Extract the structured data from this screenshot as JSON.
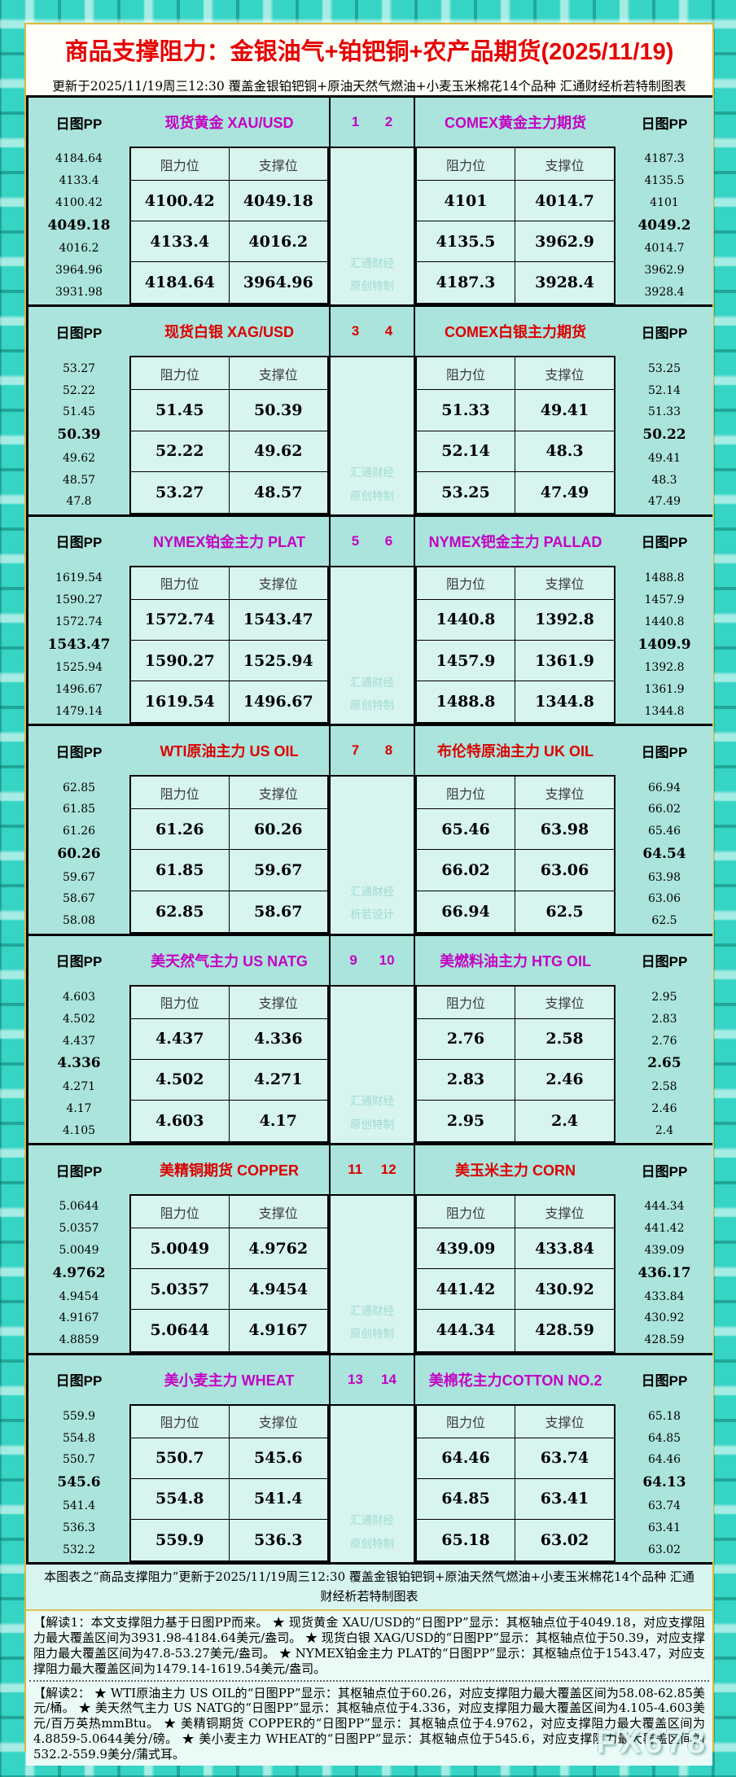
{
  "title": "商品支撑阻力：金银油气+铂钯铜+农产品期货(2025/11/19)",
  "subtitle": "更新于2025/11/19周三12:30 覆盖金银铂钯铜+原油天然气燃油+小麦玉米棉花14个品种 汇通财经析若特制图表",
  "labels": {
    "pp": "日图PP",
    "resistance": "阻力位",
    "support": "支撑位"
  },
  "colors": {
    "magenta_title": "#c400c4",
    "red_title": "#dc0000",
    "main_title_red": "#e60000",
    "frame_teal": "#35d4c4",
    "header_bg": "#abe4dc",
    "cell_bg": "#d7f4ef",
    "gold_border": "#d9ba3e"
  },
  "brand_watermark": "FX678",
  "blocks": [
    {
      "nums": [
        "1",
        "2"
      ],
      "theme": "magenta",
      "left": {
        "title": "现货黄金 XAU/USD",
        "pp": [
          "4184.64",
          "4133.4",
          "4100.42",
          "4049.18",
          "4016.2",
          "3964.96",
          "3931.98"
        ],
        "rows": [
          [
            "4100.42",
            "4049.18"
          ],
          [
            "4133.4",
            "4016.2"
          ],
          [
            "4184.64",
            "3964.96"
          ]
        ]
      },
      "right": {
        "title": "COMEX黄金主力期货",
        "pp": [
          "4187.3",
          "4135.5",
          "4101",
          "4049.2",
          "4014.7",
          "3962.9",
          "3928.4"
        ],
        "rows": [
          [
            "4101",
            "4014.7"
          ],
          [
            "4135.5",
            "3962.9"
          ],
          [
            "4187.3",
            "3928.4"
          ]
        ]
      },
      "stamp": [
        "汇通财经",
        "原创特制"
      ]
    },
    {
      "nums": [
        "3",
        "4"
      ],
      "theme": "red",
      "left": {
        "title": "现货白银 XAG/USD",
        "pp": [
          "53.27",
          "52.22",
          "51.45",
          "50.39",
          "49.62",
          "48.57",
          "47.8"
        ],
        "rows": [
          [
            "51.45",
            "50.39"
          ],
          [
            "52.22",
            "49.62"
          ],
          [
            "53.27",
            "48.57"
          ]
        ]
      },
      "right": {
        "title": "COMEX白银主力期货",
        "pp": [
          "53.25",
          "52.14",
          "51.33",
          "50.22",
          "49.41",
          "48.3",
          "47.49"
        ],
        "rows": [
          [
            "51.33",
            "49.41"
          ],
          [
            "52.14",
            "48.3"
          ],
          [
            "53.25",
            "47.49"
          ]
        ]
      },
      "stamp": [
        "汇通财经",
        "原创特制"
      ]
    },
    {
      "nums": [
        "5",
        "6"
      ],
      "theme": "magenta",
      "left": {
        "title": "NYMEX铂金主力 PLAT",
        "pp": [
          "1619.54",
          "1590.27",
          "1572.74",
          "1543.47",
          "1525.94",
          "1496.67",
          "1479.14"
        ],
        "rows": [
          [
            "1572.74",
            "1543.47"
          ],
          [
            "1590.27",
            "1525.94"
          ],
          [
            "1619.54",
            "1496.67"
          ]
        ]
      },
      "right": {
        "title": "NYMEX钯金主力 PALLAD",
        "pp": [
          "1488.8",
          "1457.9",
          "1440.8",
          "1409.9",
          "1392.8",
          "1361.9",
          "1344.8"
        ],
        "rows": [
          [
            "1440.8",
            "1392.8"
          ],
          [
            "1457.9",
            "1361.9"
          ],
          [
            "1488.8",
            "1344.8"
          ]
        ]
      },
      "stamp": [
        "汇通财经",
        "原创特制"
      ]
    },
    {
      "nums": [
        "7",
        "8"
      ],
      "theme": "red",
      "left": {
        "title": "WTI原油主力 US OIL",
        "pp": [
          "62.85",
          "61.85",
          "61.26",
          "60.26",
          "59.67",
          "58.67",
          "58.08"
        ],
        "rows": [
          [
            "61.26",
            "60.26"
          ],
          [
            "61.85",
            "59.67"
          ],
          [
            "62.85",
            "58.67"
          ]
        ]
      },
      "right": {
        "title": "布伦特原油主力 UK OIL",
        "pp": [
          "66.94",
          "66.02",
          "65.46",
          "64.54",
          "63.98",
          "63.06",
          "62.5"
        ],
        "rows": [
          [
            "65.46",
            "63.98"
          ],
          [
            "66.02",
            "63.06"
          ],
          [
            "66.94",
            "62.5"
          ]
        ]
      },
      "stamp": [
        "汇通财经",
        "析若设计"
      ]
    },
    {
      "nums": [
        "9",
        "10"
      ],
      "theme": "magenta",
      "left": {
        "title": "美天然气主力 US NATG",
        "pp": [
          "4.603",
          "4.502",
          "4.437",
          "4.336",
          "4.271",
          "4.17",
          "4.105"
        ],
        "rows": [
          [
            "4.437",
            "4.336"
          ],
          [
            "4.502",
            "4.271"
          ],
          [
            "4.603",
            "4.17"
          ]
        ]
      },
      "right": {
        "title": "美燃料油主力 HTG OIL",
        "pp": [
          "2.95",
          "2.83",
          "2.76",
          "2.65",
          "2.58",
          "2.46",
          "2.4"
        ],
        "rows": [
          [
            "2.76",
            "2.58"
          ],
          [
            "2.83",
            "2.46"
          ],
          [
            "2.95",
            "2.4"
          ]
        ]
      },
      "stamp": [
        "汇通财经",
        "原创特制"
      ]
    },
    {
      "nums": [
        "11",
        "12"
      ],
      "theme": "red",
      "left": {
        "title": "美精铜期货 COPPER",
        "pp": [
          "5.0644",
          "5.0357",
          "5.0049",
          "4.9762",
          "4.9454",
          "4.9167",
          "4.8859"
        ],
        "rows": [
          [
            "5.0049",
            "4.9762"
          ],
          [
            "5.0357",
            "4.9454"
          ],
          [
            "5.0644",
            "4.9167"
          ]
        ]
      },
      "right": {
        "title": "美玉米主力 CORN",
        "pp": [
          "444.34",
          "441.42",
          "439.09",
          "436.17",
          "433.84",
          "430.92",
          "428.59"
        ],
        "rows": [
          [
            "439.09",
            "433.84"
          ],
          [
            "441.42",
            "430.92"
          ],
          [
            "444.34",
            "428.59"
          ]
        ]
      },
      "stamp": [
        "汇通财经",
        "原创特制"
      ]
    },
    {
      "nums": [
        "13",
        "14"
      ],
      "theme": "magenta",
      "left": {
        "title": "美小麦主力 WHEAT",
        "pp": [
          "559.9",
          "554.8",
          "550.7",
          "545.6",
          "541.4",
          "536.3",
          "532.2"
        ],
        "rows": [
          [
            "550.7",
            "545.6"
          ],
          [
            "554.8",
            "541.4"
          ],
          [
            "559.9",
            "536.3"
          ]
        ]
      },
      "right": {
        "title": "美棉花主力COTTON NO.2",
        "pp": [
          "65.18",
          "64.85",
          "64.46",
          "64.13",
          "63.74",
          "63.41",
          "63.02"
        ],
        "rows": [
          [
            "64.46",
            "63.74"
          ],
          [
            "64.85",
            "63.41"
          ],
          [
            "65.18",
            "63.02"
          ]
        ]
      },
      "stamp": [
        "汇通财经",
        "原创特制"
      ]
    }
  ],
  "footer": {
    "summary": "本图表之“商品支撑阻力”更新于2025/11/19周三12:30 覆盖金银铂钯铜+原油天然气燃油+小麦玉米棉花14个品种 汇通财经析若特制图表",
    "jiedu1": "【解读1：本文支撑阻力基于日图PP而来。 ★ 现货黄金 XAU/USD的“日图PP”显示：其枢轴点位于4049.18，对应支撑阻力最大覆盖区间为3931.98-4184.64美元/盎司。 ★ 现货白银 XAG/USD的“日图PP”显示：其枢轴点位于50.39，对应支撑阻力最大覆盖区间为47.8-53.27美元/盎司。 ★ NYMEX铂金主力 PLAT的“日图PP”显示：其枢轴点位于1543.47，对应支撑阻力最大覆盖区间为1479.14-1619.54美元/盎司。",
    "jiedu2": "【解读2： ★ WTI原油主力 US OIL的“日图PP”显示：其枢轴点位于60.26，对应支撑阻力最大覆盖区间为58.08-62.85美元/桶。 ★ 美天然气主力 US NATG的“日图PP”显示：其枢轴点位于4.336，对应支撑阻力最大覆盖区间为4.105-4.603美元/百万英热mmBtu。 ★ 美精铜期货 COPPER的“日图PP”显示：其枢轴点位于4.9762，对应支撑阻力最大覆盖区间为4.8859-5.0644美分/磅。 ★ 美小麦主力 WHEAT的“日图PP”显示：其枢轴点位于545.6，对应支撑阻力最大覆盖区间为532.2-559.9美分/蒲式耳。"
  }
}
